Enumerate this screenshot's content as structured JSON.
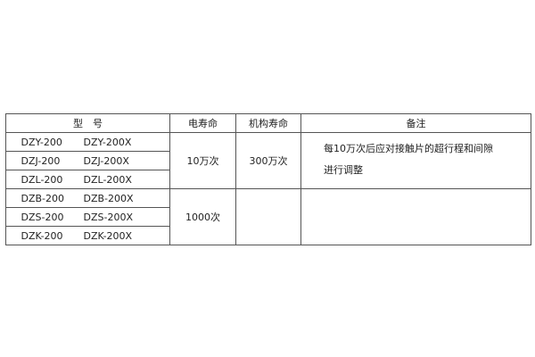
{
  "table": {
    "headers": [
      "型　号",
      "电寿命",
      "机构寿命",
      "备注"
    ],
    "rows": [
      [
        "DZY-200",
        "DZY-200X"
      ],
      [
        "DZJ-200",
        "DZJ-200X"
      ],
      [
        "DZL-200",
        "DZL-200X"
      ],
      [
        "DZB-200",
        "DZB-200X"
      ],
      [
        "DZS-200",
        "DZS-200X"
      ],
      [
        "DZK-200",
        "DZK-200X"
      ]
    ],
    "groups": [
      {
        "electrical_life": "10万次",
        "mechanical_life": "300万次",
        "note_line1": "每10万次后应对接触片的超行程和间隙",
        "note_line2": "进行调整"
      },
      {
        "electrical_life": "1000次",
        "mechanical_life": "",
        "note_line1": "",
        "note_line2": ""
      }
    ]
  }
}
